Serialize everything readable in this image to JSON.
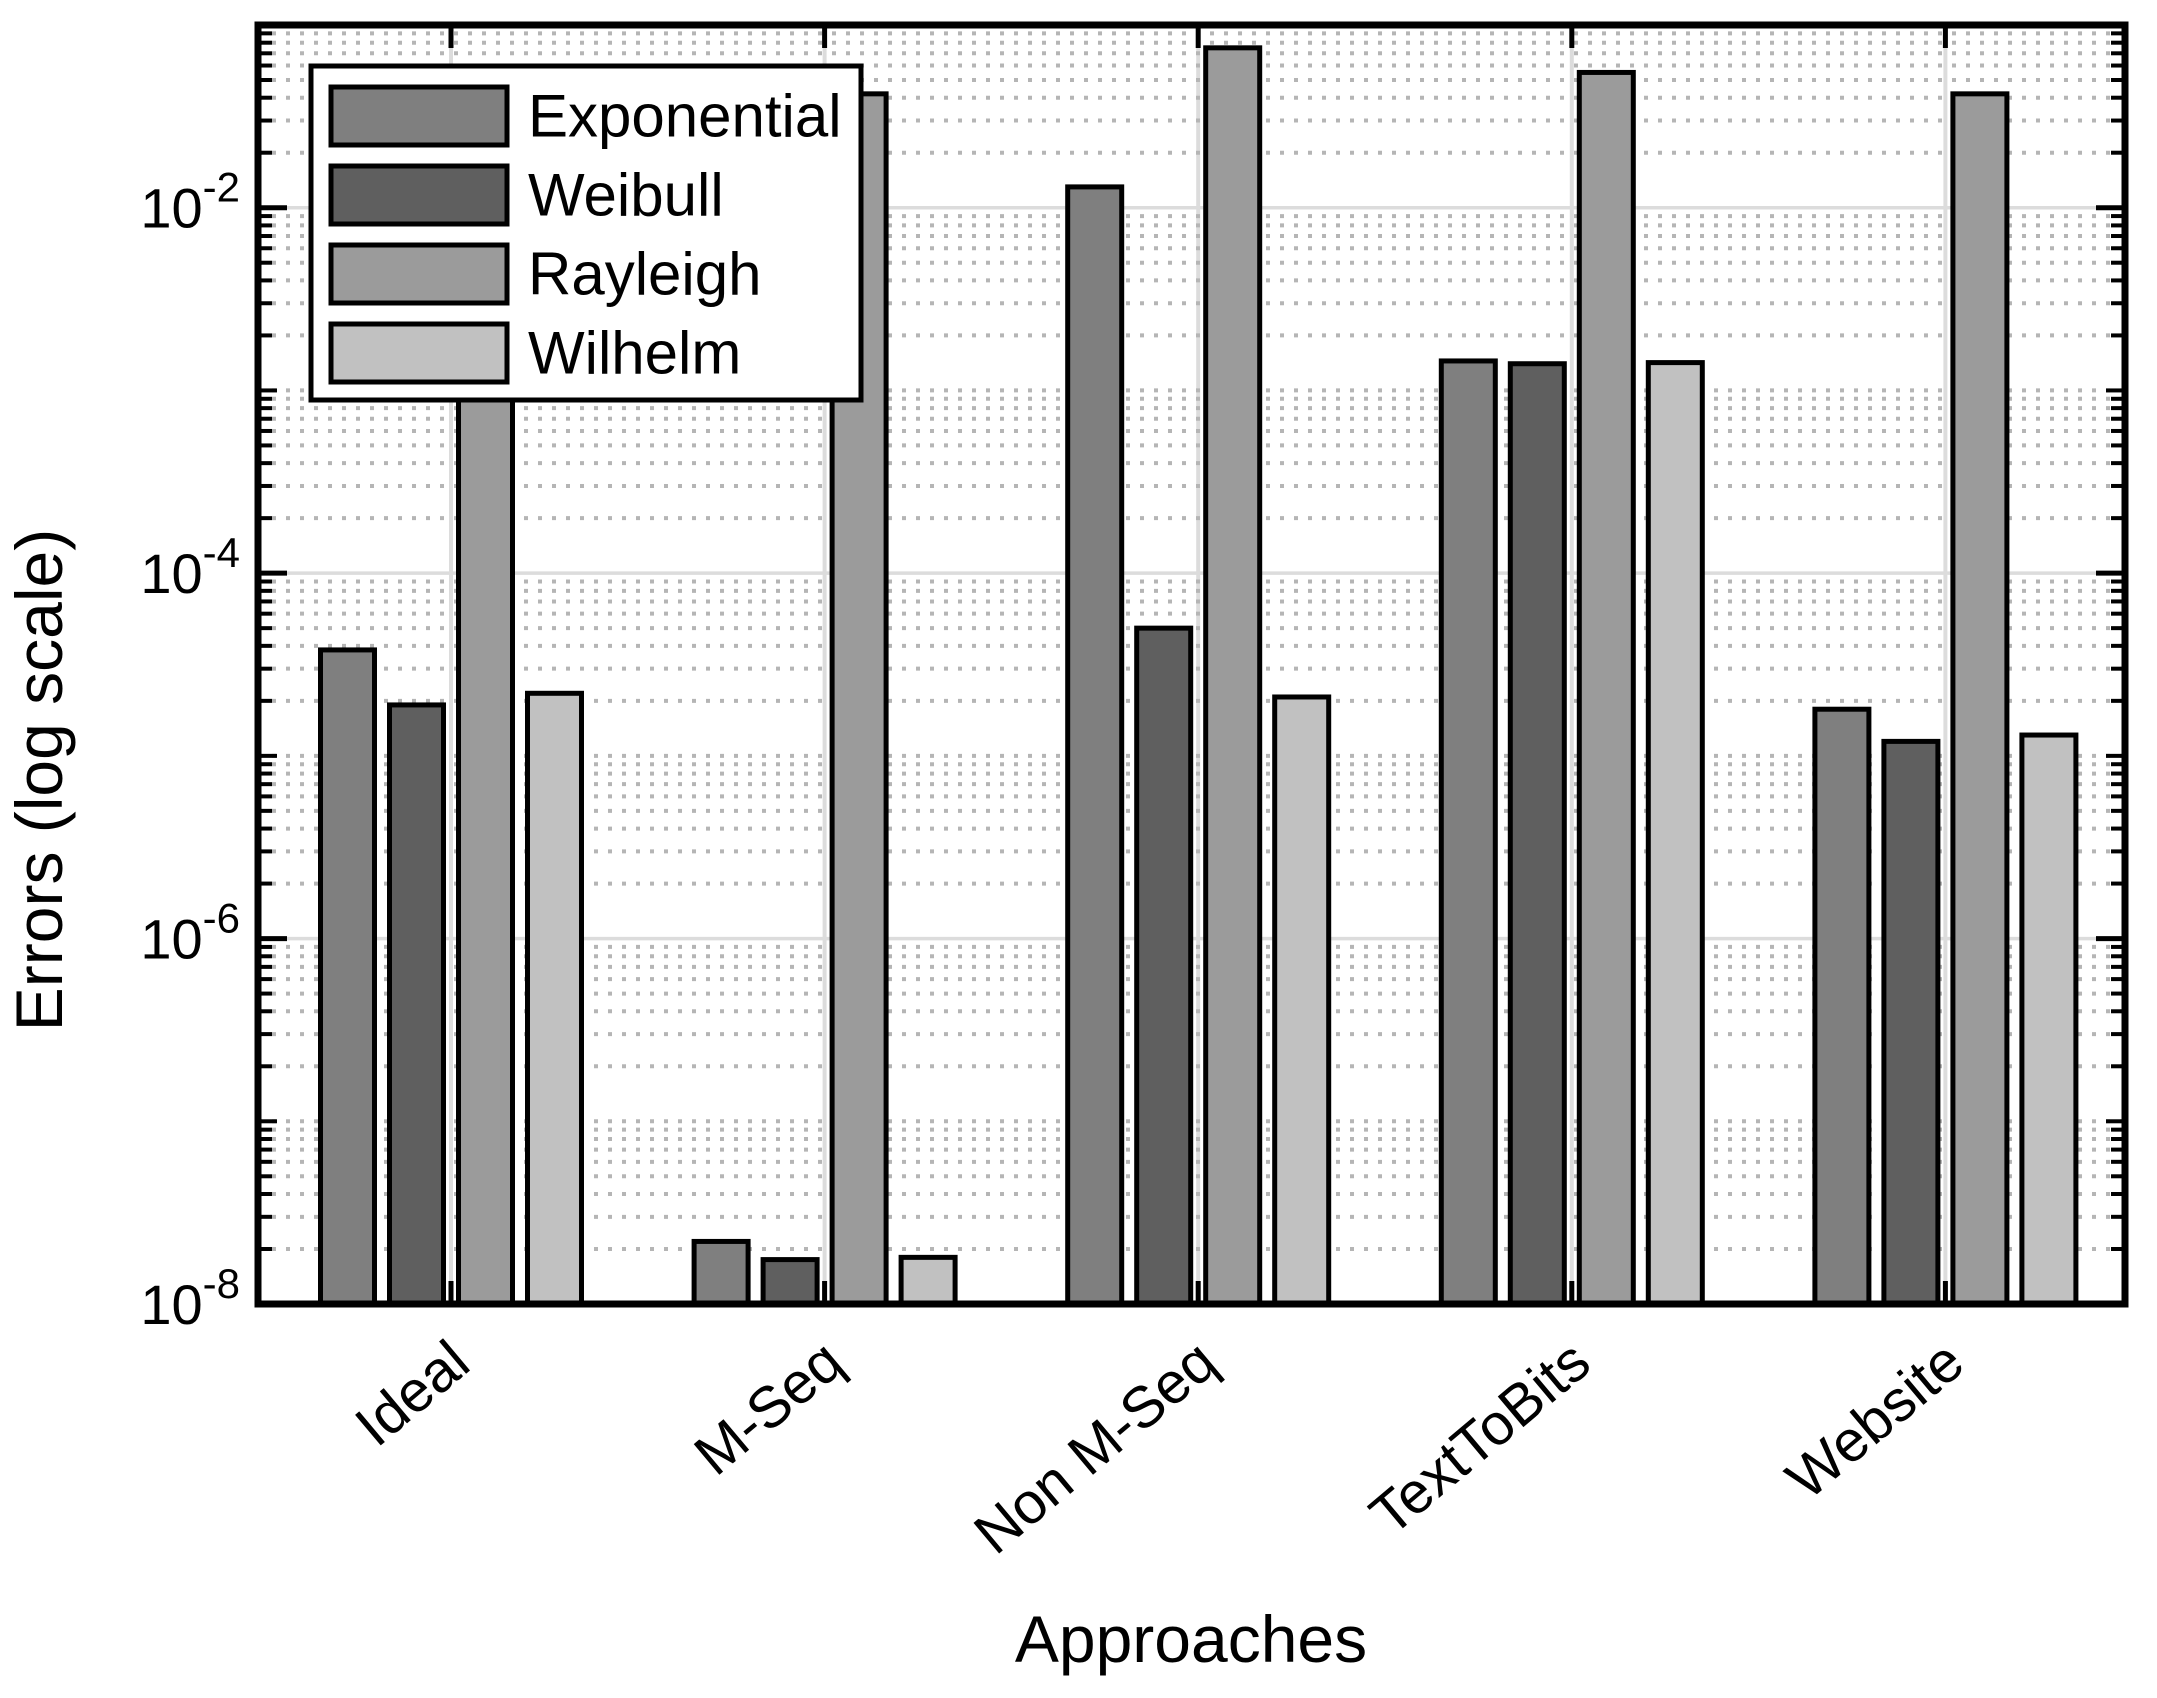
{
  "figure": {
    "background": "#ffffff",
    "axis_color": "#000000",
    "major_grid_color": "#dcdcdc",
    "minor_grid_color": "#b5b5b5"
  },
  "chart_data": {
    "type": "bar",
    "title": "",
    "xlabel": "Approaches",
    "ylabel": "Errors (log scale)",
    "yscale": "log",
    "ylim": [
      1e-08,
      0.1
    ],
    "grid": "on",
    "minor_grid": "on",
    "legend_position": "northwest",
    "categories": [
      "Ideal",
      "M-Seq",
      "Non M-Seq",
      "TextToBits",
      "Website"
    ],
    "yticks": [
      {
        "base": "10",
        "exp": "-2",
        "value": 0.01
      },
      {
        "base": "10",
        "exp": "-4",
        "value": 0.0001
      },
      {
        "base": "10",
        "exp": "-6",
        "value": 1e-06
      },
      {
        "base": "10",
        "exp": "-8",
        "value": 1e-08
      }
    ],
    "series": [
      {
        "name": "Exponential",
        "color": "#7f7f7f",
        "values": [
          3.8e-05,
          2.2e-08,
          0.013,
          0.00145,
          1.8e-05
        ]
      },
      {
        "name": "Weibull",
        "color": "#5f5f5f",
        "values": [
          1.9e-05,
          1.75e-08,
          5e-05,
          0.0014,
          1.2e-05
        ]
      },
      {
        "name": "Rayleigh",
        "color": "#9b9b9b",
        "values": [
          0.02,
          0.042,
          0.075,
          0.055,
          0.042
        ]
      },
      {
        "name": "Wilhelm",
        "color": "#c1c1c1",
        "values": [
          2.2e-05,
          1.8e-08,
          2.1e-05,
          0.00142,
          1.3e-05
        ]
      }
    ]
  }
}
